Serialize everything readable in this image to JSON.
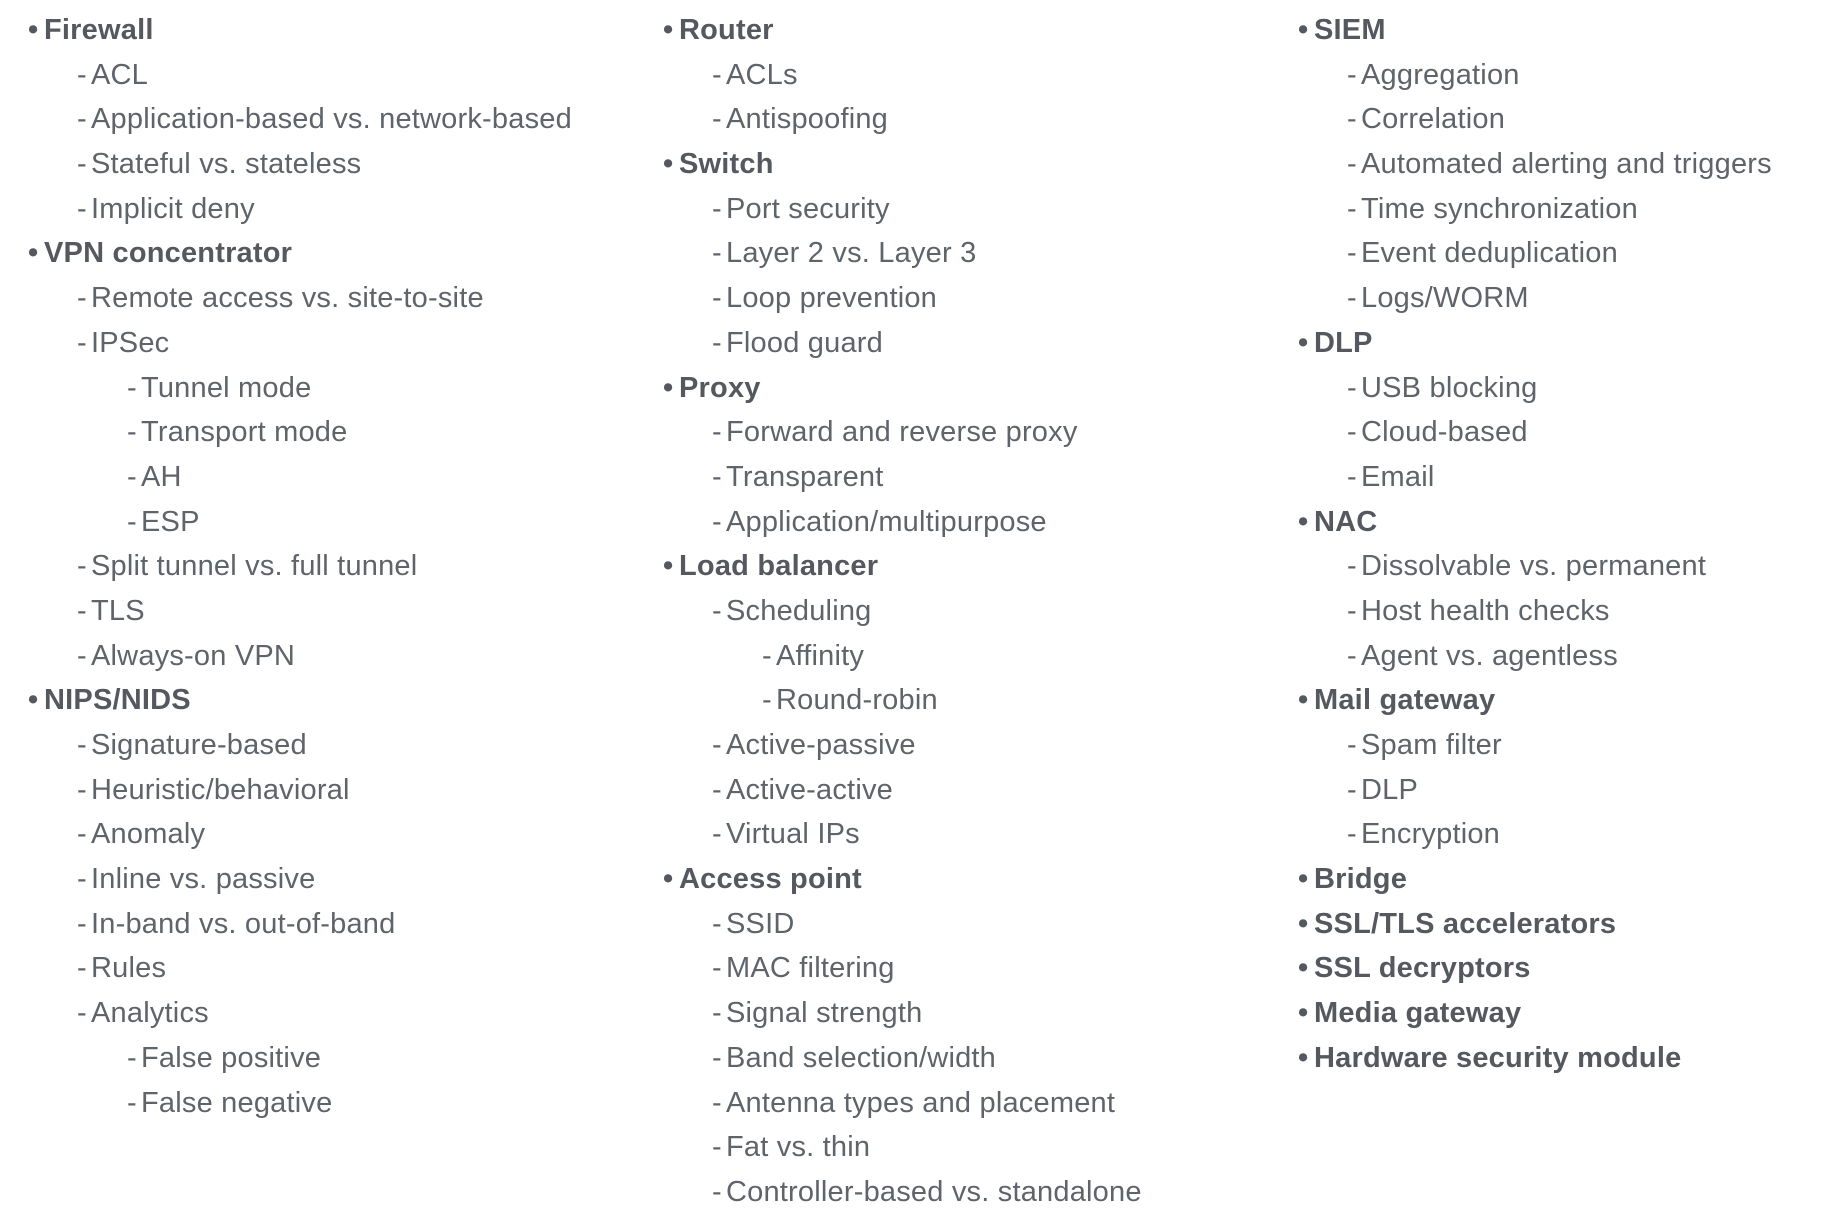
{
  "columns": [
    {
      "items": [
        {
          "text": "Firewall",
          "level": 0
        },
        {
          "text": "ACL",
          "level": 1
        },
        {
          "text": "Application-based vs. network-based",
          "level": 1
        },
        {
          "text": "Stateful vs. stateless",
          "level": 1
        },
        {
          "text": "Implicit deny",
          "level": 1
        },
        {
          "text": "VPN concentrator",
          "level": 0
        },
        {
          "text": "Remote access vs. site-to-site",
          "level": 1
        },
        {
          "text": "IPSec",
          "level": 1
        },
        {
          "text": "Tunnel mode",
          "level": 2
        },
        {
          "text": "Transport mode",
          "level": 2
        },
        {
          "text": "AH",
          "level": 2
        },
        {
          "text": "ESP",
          "level": 2
        },
        {
          "text": "Split tunnel vs. full tunnel",
          "level": 1
        },
        {
          "text": "TLS",
          "level": 1
        },
        {
          "text": "Always-on VPN",
          "level": 1
        },
        {
          "text": "NIPS/NIDS",
          "level": 0
        },
        {
          "text": "Signature-based",
          "level": 1
        },
        {
          "text": "Heuristic/behavioral",
          "level": 1
        },
        {
          "text": "Anomaly",
          "level": 1
        },
        {
          "text": "Inline vs. passive",
          "level": 1
        },
        {
          "text": "In-band vs. out-of-band",
          "level": 1
        },
        {
          "text": "Rules",
          "level": 1
        },
        {
          "text": "Analytics",
          "level": 1
        },
        {
          "text": "False positive",
          "level": 2
        },
        {
          "text": "False negative",
          "level": 2
        }
      ]
    },
    {
      "items": [
        {
          "text": "Router",
          "level": 0
        },
        {
          "text": "ACLs",
          "level": 1
        },
        {
          "text": "Antispoofing",
          "level": 1
        },
        {
          "text": "Switch",
          "level": 0
        },
        {
          "text": "Port security",
          "level": 1
        },
        {
          "text": "Layer 2 vs. Layer 3",
          "level": 1
        },
        {
          "text": "Loop prevention",
          "level": 1
        },
        {
          "text": "Flood guard",
          "level": 1
        },
        {
          "text": "Proxy",
          "level": 0
        },
        {
          "text": "Forward and reverse proxy",
          "level": 1
        },
        {
          "text": "Transparent",
          "level": 1
        },
        {
          "text": "Application/multipurpose",
          "level": 1
        },
        {
          "text": "Load balancer",
          "level": 0
        },
        {
          "text": "Scheduling",
          "level": 1
        },
        {
          "text": "Affinity",
          "level": 2
        },
        {
          "text": "Round-robin",
          "level": 2
        },
        {
          "text": "Active-passive",
          "level": 1
        },
        {
          "text": "Active-active",
          "level": 1
        },
        {
          "text": "Virtual IPs",
          "level": 1
        },
        {
          "text": "Access point",
          "level": 0
        },
        {
          "text": "SSID",
          "level": 1
        },
        {
          "text": "MAC filtering",
          "level": 1
        },
        {
          "text": "Signal strength",
          "level": 1
        },
        {
          "text": "Band selection/width",
          "level": 1
        },
        {
          "text": "Antenna types and placement",
          "level": 1
        },
        {
          "text": "Fat vs. thin",
          "level": 1
        },
        {
          "text": "Controller-based vs. standalone",
          "level": 1
        }
      ]
    },
    {
      "items": [
        {
          "text": "SIEM",
          "level": 0
        },
        {
          "text": "Aggregation",
          "level": 1
        },
        {
          "text": "Correlation",
          "level": 1
        },
        {
          "text": "Automated alerting and triggers",
          "level": 1
        },
        {
          "text": "Time synchronization",
          "level": 1
        },
        {
          "text": "Event deduplication",
          "level": 1
        },
        {
          "text": "Logs/WORM",
          "level": 1
        },
        {
          "text": "DLP",
          "level": 0
        },
        {
          "text": "USB blocking",
          "level": 1
        },
        {
          "text": "Cloud-based",
          "level": 1
        },
        {
          "text": "Email",
          "level": 1
        },
        {
          "text": "NAC",
          "level": 0
        },
        {
          "text": "Dissolvable vs. permanent",
          "level": 1
        },
        {
          "text": "Host health checks",
          "level": 1
        },
        {
          "text": "Agent vs. agentless",
          "level": 1
        },
        {
          "text": "Mail gateway",
          "level": 0
        },
        {
          "text": "Spam filter",
          "level": 1
        },
        {
          "text": "DLP",
          "level": 1
        },
        {
          "text": "Encryption",
          "level": 1
        },
        {
          "text": "Bridge",
          "level": 0
        },
        {
          "text": "SSL/TLS accelerators",
          "level": 0
        },
        {
          "text": "SSL decryptors",
          "level": 0
        },
        {
          "text": "Media gateway",
          "level": 0
        },
        {
          "text": "Hardware security module",
          "level": 0
        }
      ]
    }
  ]
}
